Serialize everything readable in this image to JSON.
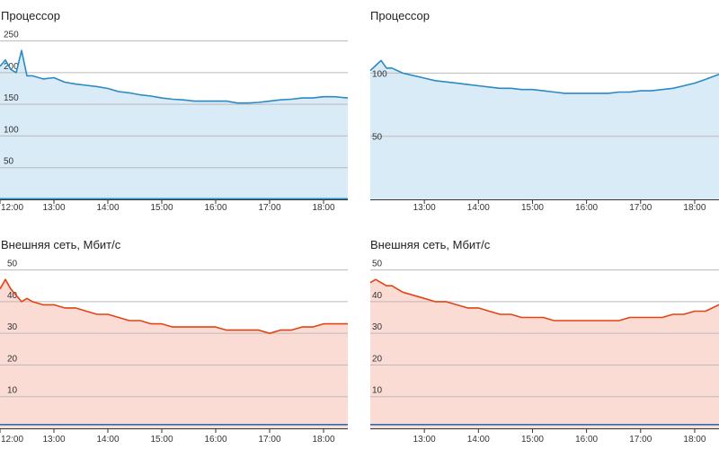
{
  "chart_data": [
    {
      "id": "cpu-left",
      "type": "area",
      "title": "Процессор",
      "ylim": [
        0,
        265
      ],
      "yticks": [
        50,
        100,
        150,
        200,
        250
      ],
      "xlim": [
        12.0,
        18.45
      ],
      "xticks": [
        12,
        13,
        14,
        15,
        16,
        17,
        18
      ],
      "xtick_labels": [
        "12:00",
        "13:00",
        "14:00",
        "15:00",
        "16:00",
        "17:00",
        "18:00"
      ],
      "grid": true,
      "series": [
        {
          "color": "#2a8bc4",
          "fill": "#d9ebf7",
          "x": [
            12.0,
            12.1,
            12.2,
            12.3,
            12.4,
            12.5,
            12.6,
            12.8,
            13.0,
            13.2,
            13.4,
            13.6,
            13.8,
            14.0,
            14.2,
            14.4,
            14.6,
            14.8,
            15.0,
            15.2,
            15.4,
            15.6,
            15.8,
            16.0,
            16.2,
            16.4,
            16.6,
            16.8,
            17.0,
            17.2,
            17.4,
            17.6,
            17.8,
            18.0,
            18.2,
            18.45
          ],
          "values": [
            210,
            220,
            205,
            200,
            235,
            195,
            195,
            190,
            192,
            185,
            182,
            180,
            178,
            175,
            170,
            168,
            165,
            163,
            160,
            158,
            157,
            155,
            155,
            155,
            155,
            152,
            152,
            153,
            155,
            157,
            158,
            160,
            160,
            162,
            162,
            160
          ]
        },
        {
          "color": "#2a8bc4",
          "fill": "none",
          "x": [
            12.0,
            18.45
          ],
          "values": [
            1,
            1
          ]
        }
      ]
    },
    {
      "id": "cpu-right",
      "type": "area",
      "title": "Процессор",
      "ylim": [
        0,
        133
      ],
      "yticks": [
        50,
        100
      ],
      "xlim": [
        12.0,
        18.45
      ],
      "xticks": [
        13,
        14,
        15,
        16,
        17,
        18
      ],
      "xtick_labels": [
        "13:00",
        "14:00",
        "15:00",
        "16:00",
        "17:00",
        "18:00"
      ],
      "grid": true,
      "series": [
        {
          "color": "#2a8bc4",
          "fill": "#d9ebf7",
          "x": [
            12.0,
            12.1,
            12.2,
            12.3,
            12.4,
            12.5,
            12.6,
            12.8,
            13.0,
            13.2,
            13.4,
            13.6,
            13.8,
            14.0,
            14.2,
            14.4,
            14.6,
            14.8,
            15.0,
            15.2,
            15.4,
            15.6,
            15.8,
            16.0,
            16.2,
            16.4,
            16.6,
            16.8,
            17.0,
            17.2,
            17.4,
            17.6,
            17.8,
            18.0,
            18.2,
            18.45
          ],
          "values": [
            102,
            106,
            110,
            104,
            104,
            102,
            100,
            98,
            96,
            94,
            93,
            92,
            91,
            90,
            89,
            88,
            88,
            87,
            87,
            86,
            85,
            84,
            84,
            84,
            84,
            84,
            85,
            85,
            86,
            86,
            87,
            88,
            90,
            92,
            95,
            99
          ]
        }
      ]
    },
    {
      "id": "net-left",
      "type": "area",
      "title": "Внешняя сеть, Мбит/с",
      "ylim": [
        0,
        53
      ],
      "yticks": [
        10,
        20,
        30,
        40,
        50
      ],
      "xlim": [
        12.0,
        18.45
      ],
      "xticks": [
        12,
        13,
        14,
        15,
        16,
        17,
        18
      ],
      "xtick_labels": [
        "12:00",
        "13:00",
        "14:00",
        "15:00",
        "16:00",
        "17:00",
        "18:00"
      ],
      "grid": true,
      "series": [
        {
          "color": "#e24413",
          "fill": "#fadcd5",
          "x": [
            12.0,
            12.1,
            12.2,
            12.3,
            12.4,
            12.5,
            12.6,
            12.8,
            13.0,
            13.2,
            13.4,
            13.6,
            13.8,
            14.0,
            14.2,
            14.4,
            14.6,
            14.8,
            15.0,
            15.2,
            15.4,
            15.6,
            15.8,
            16.0,
            16.2,
            16.4,
            16.6,
            16.8,
            17.0,
            17.2,
            17.4,
            17.6,
            17.8,
            18.0,
            18.2,
            18.45
          ],
          "values": [
            44,
            47,
            44,
            42,
            40,
            41,
            40,
            39,
            39,
            38,
            38,
            37,
            36,
            36,
            35,
            34,
            34,
            33,
            33,
            32,
            32,
            32,
            32,
            32,
            31,
            31,
            31,
            31,
            30,
            31,
            31,
            32,
            32,
            33,
            33,
            33
          ]
        },
        {
          "color": "#2a6fb5",
          "fill": "none",
          "x": [
            12.0,
            18.45
          ],
          "values": [
            1.2,
            1.2
          ]
        }
      ]
    },
    {
      "id": "net-right",
      "type": "area",
      "title": "Внешняя сеть, Мбит/с",
      "ylim": [
        0,
        53
      ],
      "yticks": [
        10,
        20,
        30,
        40,
        50
      ],
      "xlim": [
        12.0,
        18.45
      ],
      "xticks": [
        13,
        14,
        15,
        16,
        17,
        18
      ],
      "xtick_labels": [
        "13:00",
        "14:00",
        "15:00",
        "16:00",
        "17:00",
        "18:00"
      ],
      "grid": true,
      "series": [
        {
          "color": "#e24413",
          "fill": "#fadcd5",
          "x": [
            12.0,
            12.1,
            12.2,
            12.3,
            12.4,
            12.5,
            12.6,
            12.8,
            13.0,
            13.2,
            13.4,
            13.6,
            13.8,
            14.0,
            14.2,
            14.4,
            14.6,
            14.8,
            15.0,
            15.2,
            15.4,
            15.6,
            15.8,
            16.0,
            16.2,
            16.4,
            16.6,
            16.8,
            17.0,
            17.2,
            17.4,
            17.6,
            17.8,
            18.0,
            18.2,
            18.45
          ],
          "values": [
            46,
            47,
            46,
            45,
            45,
            44,
            43,
            42,
            41,
            40,
            40,
            39,
            38,
            38,
            37,
            36,
            36,
            35,
            35,
            35,
            34,
            34,
            34,
            34,
            34,
            34,
            34,
            35,
            35,
            35,
            35,
            36,
            36,
            37,
            37,
            39
          ]
        },
        {
          "color": "#2a6fb5",
          "fill": "none",
          "x": [
            12.0,
            18.45
          ],
          "values": [
            1.2,
            1.2
          ]
        }
      ]
    }
  ]
}
